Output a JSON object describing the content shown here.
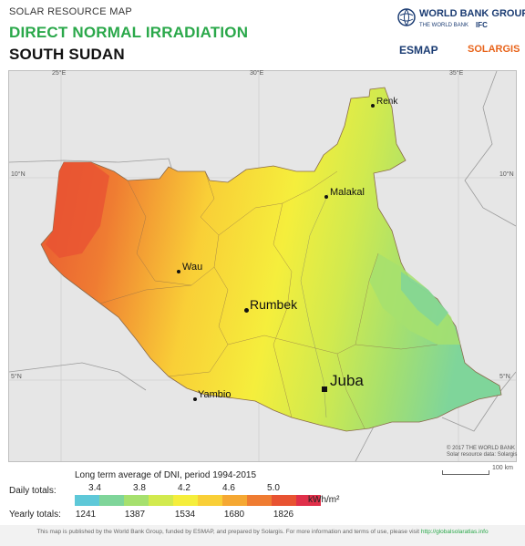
{
  "header": {
    "kicker": "SOLAR RESOURCE MAP",
    "title": "DIRECT NORMAL IRRADIATION",
    "country": "SOUTH SUDAN"
  },
  "logos": {
    "world_bank_group": "WORLD BANK GROUP",
    "world_bank": "THE WORLD BANK",
    "ifc": "IFC",
    "esmap": "ESMAP",
    "solargis": "SOLARGIS"
  },
  "map": {
    "coords": {
      "lon_25": "25°E",
      "lon_30": "30°E",
      "lon_35": "35°E",
      "lat_10_left": "10°N",
      "lat_10_right": "10°N",
      "lat_5_left": "5°N",
      "lat_5_right": "5°N"
    },
    "cities": {
      "renk": "Renk",
      "malakal": "Malakal",
      "wau": "Wau",
      "rumbek": "Rumbek",
      "juba": "Juba",
      "yambio": "Yambio"
    },
    "copyright_line1": "© 2017 THE WORLD BANK",
    "copyright_line2": "Solar resource data: Solargis",
    "scale_label": "100 km",
    "colors": {
      "background": "#ffffff",
      "outside_land": "#d9d9d9",
      "border": "#8a8a8a"
    }
  },
  "legend": {
    "title": "Long term average of DNI, period 1994-2015",
    "daily_label": "Daily totals:",
    "yearly_label": "Yearly totals:",
    "daily_values": [
      "3.4",
      "3.8",
      "4.2",
      "4.6",
      "5.0"
    ],
    "yearly_values": [
      "1241",
      "1387",
      "1534",
      "1680",
      "1826"
    ],
    "unit": "kWh/m²",
    "colors": [
      "#5ec8d8",
      "#7fd59a",
      "#a6e06e",
      "#d2ea4e",
      "#f5ee3c",
      "#f9cf37",
      "#f5a833",
      "#ef7c32",
      "#e85332",
      "#e0304a"
    ]
  },
  "footer": {
    "text": "This map is published by the World Bank Group, funded by ESMAP, and prepared by Solargis. For more information and terms of use, please visit",
    "link": "http://globalsolaratlas.info"
  }
}
